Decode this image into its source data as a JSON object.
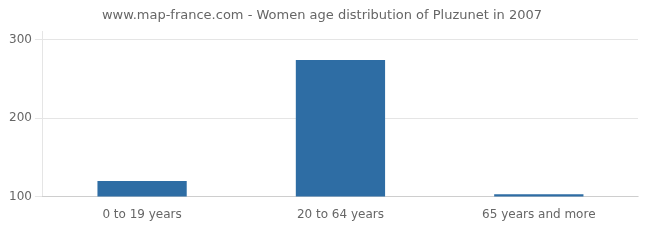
{
  "chart_data": {
    "type": "bar",
    "title": "www.map-france.com - Women age distribution of Pluzunet in 2007",
    "categories": [
      "0 to 19 years",
      "20 to 64 years",
      "65 years and more"
    ],
    "values": [
      120,
      274,
      103
    ],
    "color": "#2e6da4",
    "ylim": [
      100,
      310
    ],
    "yticks": [
      100,
      200,
      300
    ],
    "grid": true
  }
}
